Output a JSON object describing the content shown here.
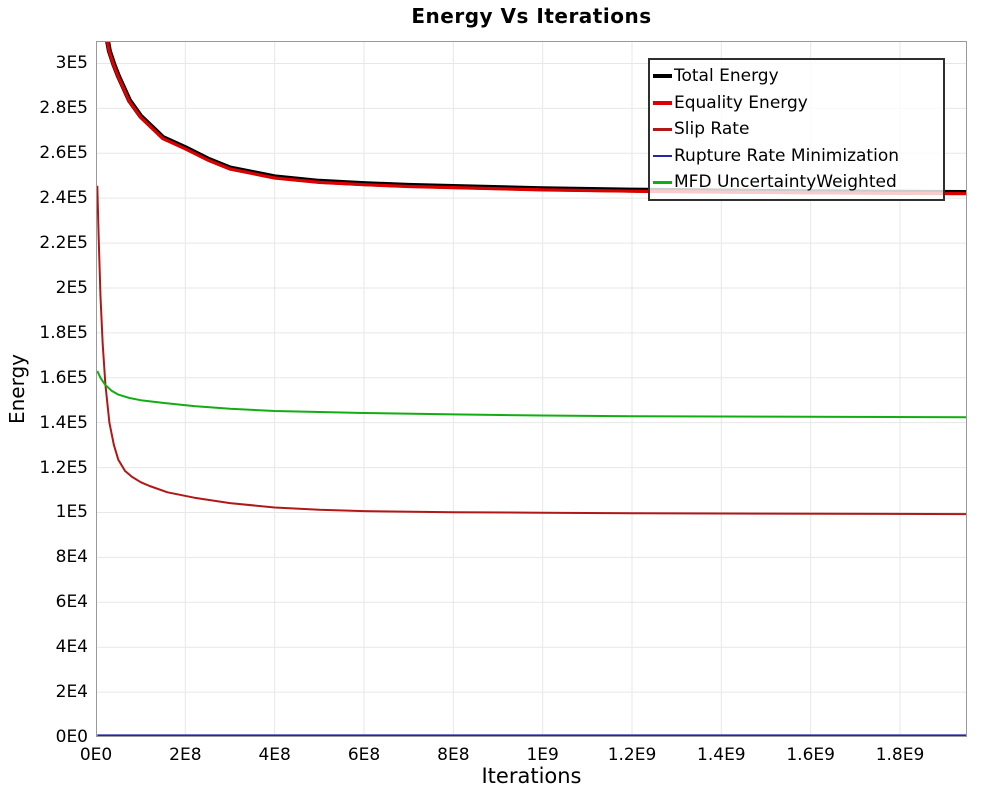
{
  "chart_data": {
    "type": "line",
    "title": "Energy Vs Iterations",
    "xlabel": "Iterations",
    "ylabel": "Energy",
    "xlim": [
      0,
      1950000000
    ],
    "ylim": [
      0,
      310000
    ],
    "grid": true,
    "legend_position": "top-right",
    "background_color": "#ffffff",
    "gridline_color": "#e7e7e7",
    "border_color": "#9a9a9a",
    "x_ticks": {
      "values": [
        0,
        200000000,
        400000000,
        600000000,
        800000000,
        1000000000,
        1200000000,
        1400000000,
        1600000000,
        1800000000
      ],
      "labels": [
        "0E0",
        "2E8",
        "4E8",
        "6E8",
        "8E8",
        "1E9",
        "1.2E9",
        "1.4E9",
        "1.6E9",
        "1.8E9"
      ]
    },
    "y_ticks": {
      "values": [
        0,
        20000,
        40000,
        60000,
        80000,
        100000,
        120000,
        140000,
        160000,
        180000,
        200000,
        220000,
        240000,
        260000,
        280000,
        300000
      ],
      "labels": [
        "0E0",
        "2E4",
        "4E4",
        "6E4",
        "8E4",
        "1E5",
        "1.2E5",
        "1.4E5",
        "1.6E5",
        "1.8E5",
        "2E5",
        "2.2E5",
        "2.4E5",
        "2.6E5",
        "2.8E5",
        "3E5"
      ]
    },
    "series": [
      {
        "name": "Total Energy",
        "color": "#000000",
        "width": 5,
        "x": [
          13000000,
          20000000,
          30000000,
          40000000,
          50000000,
          75000000,
          100000000,
          150000000,
          200000000,
          250000000,
          300000000,
          400000000,
          500000000,
          600000000,
          700000000,
          800000000,
          1000000000,
          1200000000,
          1400000000,
          1600000000,
          1800000000,
          1950000000
        ],
        "y": [
          330500,
          316500,
          305500,
          299500,
          294500,
          283500,
          276500,
          267000,
          262500,
          257500,
          253500,
          249500,
          247500,
          246500,
          245700,
          245200,
          244200,
          243600,
          243200,
          242900,
          242600,
          242500
        ]
      },
      {
        "name": "Equality Energy",
        "color": "#dd0000",
        "width": 3.2,
        "x": [
          13000000,
          20000000,
          30000000,
          40000000,
          50000000,
          75000000,
          100000000,
          150000000,
          200000000,
          250000000,
          300000000,
          400000000,
          500000000,
          600000000,
          700000000,
          800000000,
          1000000000,
          1200000000,
          1400000000,
          1600000000,
          1800000000,
          1950000000
        ],
        "y": [
          330000,
          316000,
          305000,
          299000,
          294000,
          283000,
          276000,
          266500,
          262000,
          257000,
          253000,
          249000,
          247000,
          246000,
          245200,
          244700,
          243700,
          243100,
          242700,
          242400,
          242100,
          242000
        ]
      },
      {
        "name": "Slip Rate",
        "color": "#b01818",
        "width": 2,
        "x": [
          3000000,
          6000000,
          10000000,
          15000000,
          21000000,
          30000000,
          40000000,
          50000000,
          65000000,
          80000000,
          100000000,
          120000000,
          160000000,
          220000000,
          300000000,
          400000000,
          500000000,
          600000000,
          800000000,
          1000000000,
          1200000000,
          1500000000,
          1950000000
        ],
        "y": [
          245500,
          222000,
          196000,
          175000,
          157000,
          140000,
          130000,
          123500,
          118500,
          116000,
          113500,
          111800,
          109000,
          106600,
          104200,
          102200,
          101200,
          100600,
          100100,
          99900,
          99700,
          99500,
          99300
        ]
      },
      {
        "name": "Rupture Rate Minimization",
        "color": "#2525a8",
        "width": 2,
        "x": [
          3000000,
          1950000000
        ],
        "y": [
          700,
          700
        ]
      },
      {
        "name": "MFD UncertaintyWeighted",
        "color": "#12ad12",
        "width": 2,
        "x": [
          3000000,
          10000000,
          20000000,
          35000000,
          50000000,
          75000000,
          100000000,
          150000000,
          220000000,
          300000000,
          400000000,
          600000000,
          800000000,
          1000000000,
          1200000000,
          1500000000,
          1950000000
        ],
        "y": [
          163000,
          160000,
          157000,
          154200,
          152500,
          151000,
          150000,
          148800,
          147400,
          146200,
          145200,
          144300,
          143700,
          143200,
          142900,
          142700,
          142400
        ]
      }
    ]
  }
}
